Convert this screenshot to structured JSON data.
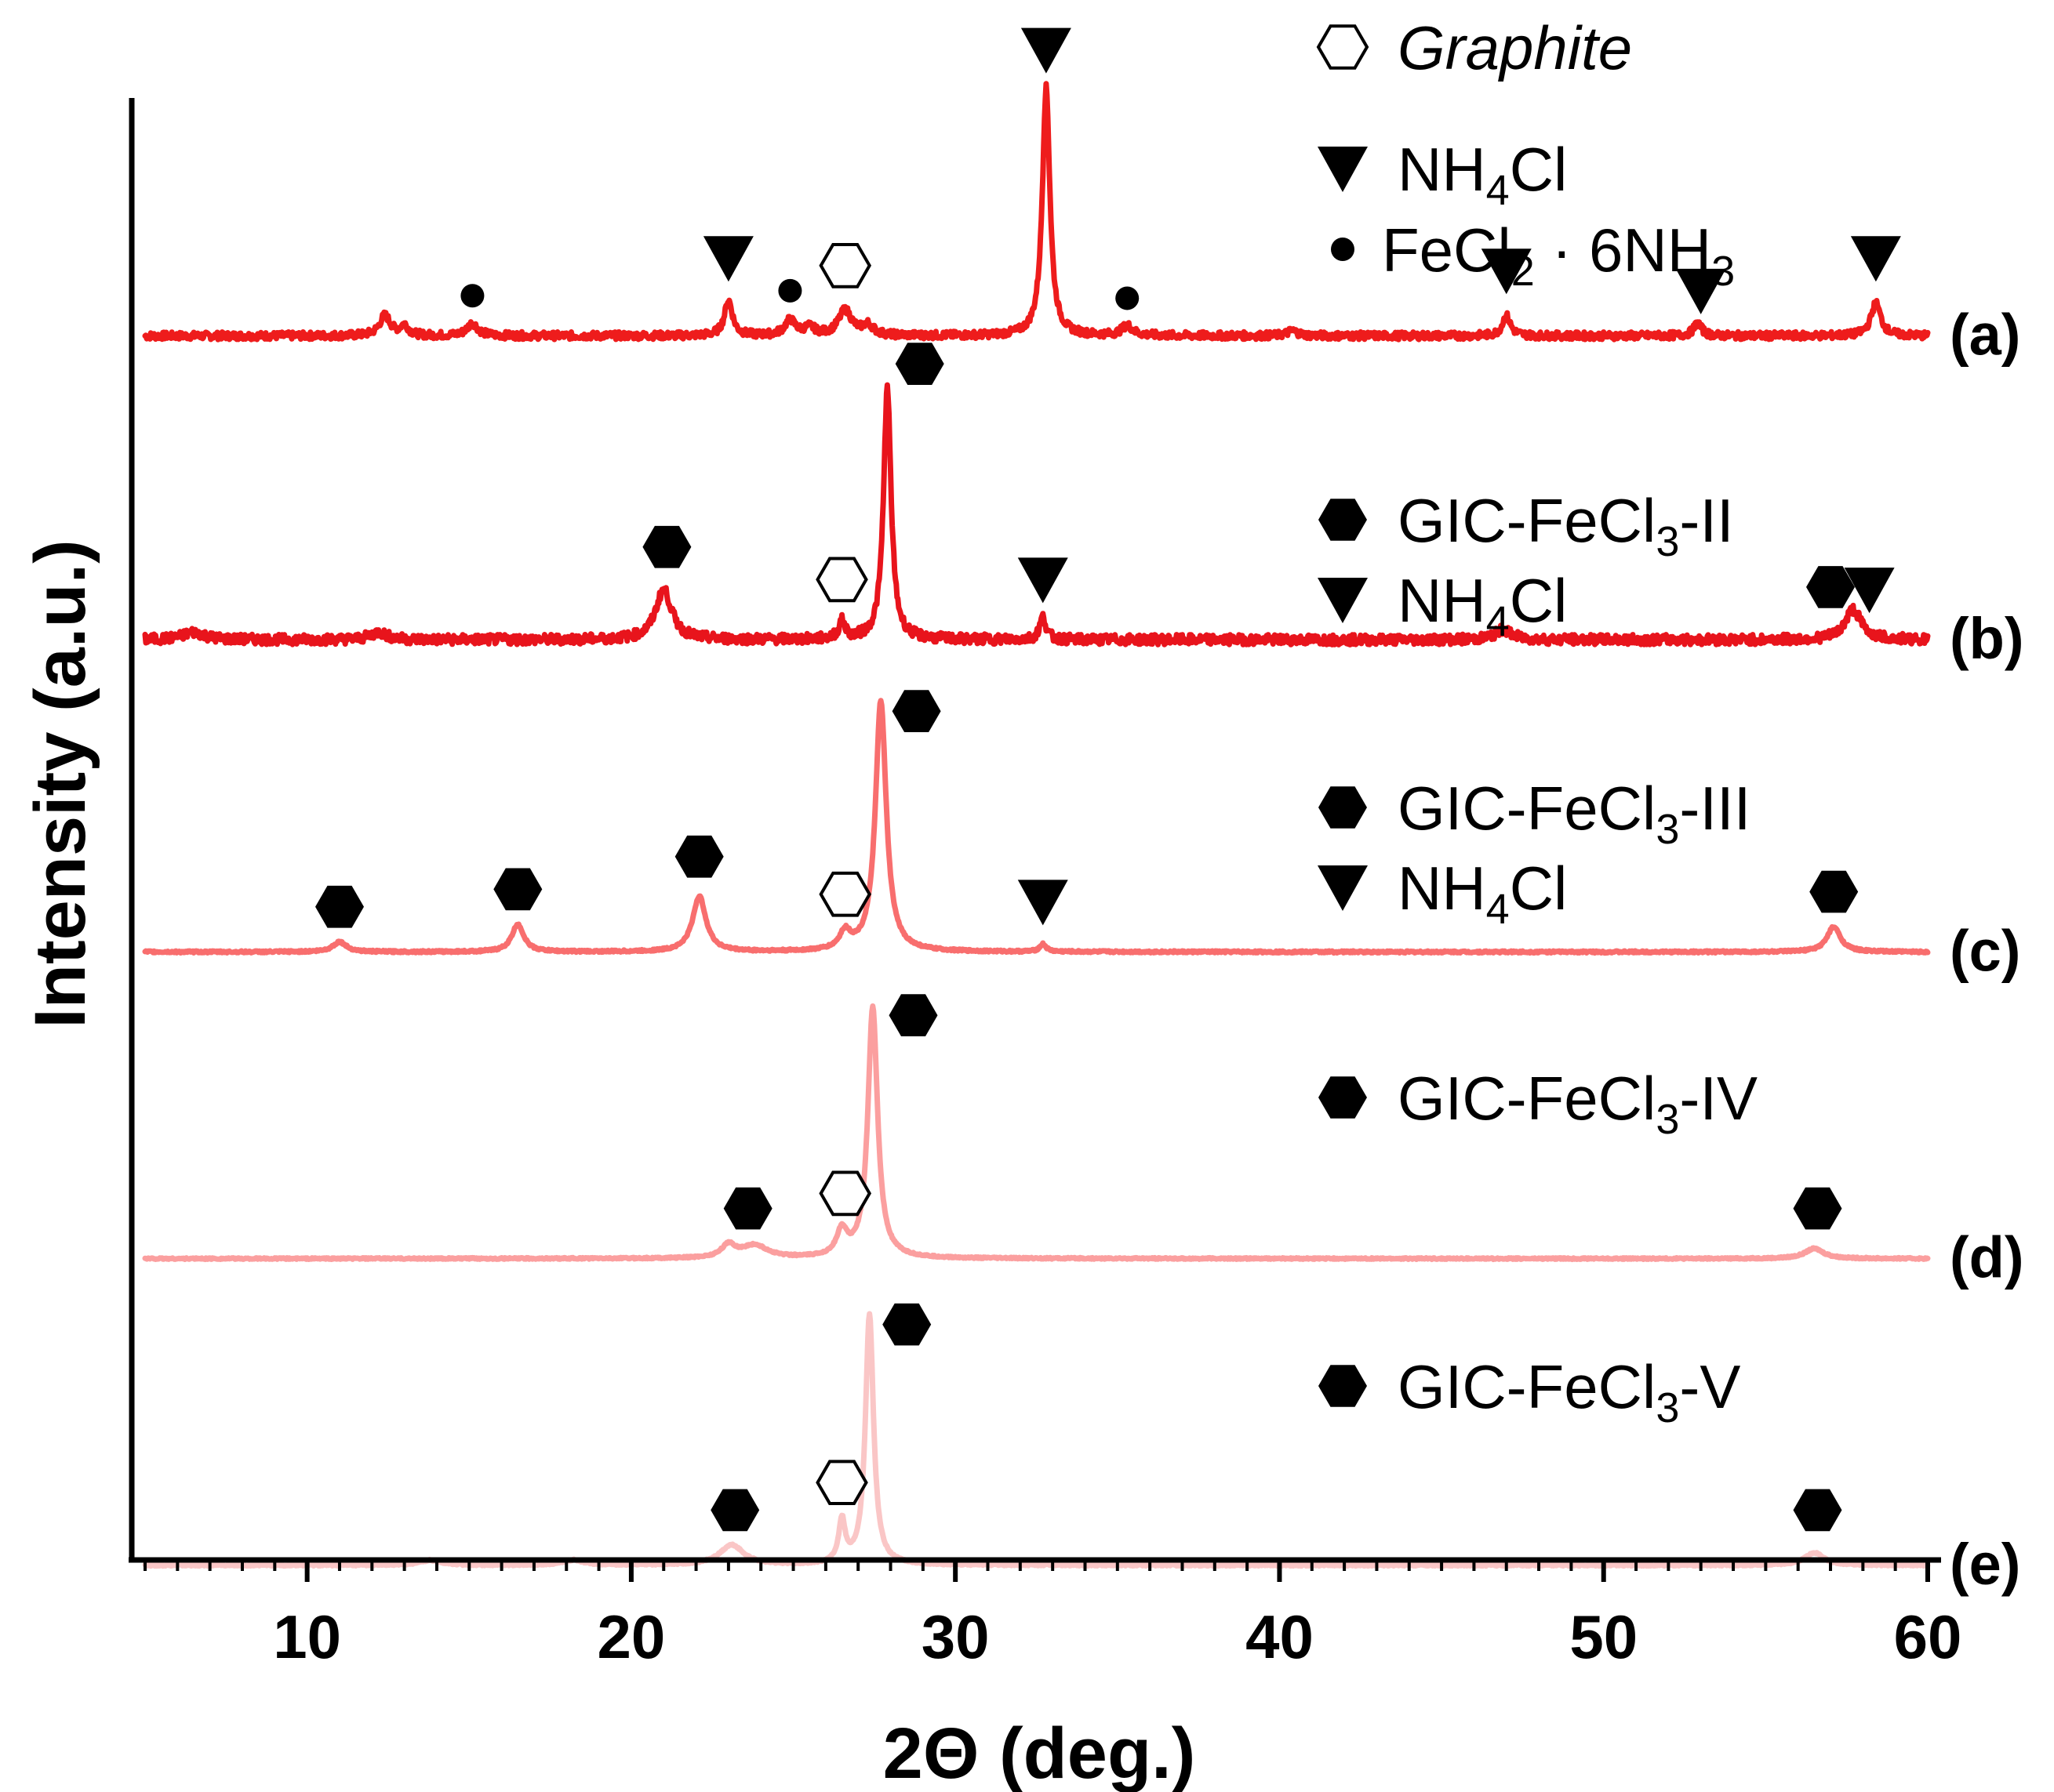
{
  "chart_data": {
    "type": "line",
    "title": "",
    "xlabel": "2Θ (deg.)",
    "ylabel": "Intensity (a.u.)",
    "xlim": [
      5,
      60
    ],
    "xticks": [
      10,
      20,
      30,
      40,
      50,
      60
    ],
    "grid": false,
    "series": [
      {
        "name": "(a)",
        "color": "#ee1c1c",
        "baseline": 1.0,
        "noise": 0.03,
        "peaks": [
          {
            "x": 12.4,
            "h": 0.08,
            "w": 0.2
          },
          {
            "x": 13.0,
            "h": 0.04,
            "w": 0.15
          },
          {
            "x": 15.1,
            "h": 0.05,
            "w": 0.2
          },
          {
            "x": 23.0,
            "h": 0.14,
            "w": 0.15
          },
          {
            "x": 24.9,
            "h": 0.06,
            "w": 0.2
          },
          {
            "x": 25.5,
            "h": 0.03,
            "w": 0.2
          },
          {
            "x": 26.6,
            "h": 0.1,
            "w": 0.25
          },
          {
            "x": 27.3,
            "h": 0.04,
            "w": 0.2
          },
          {
            "x": 32.8,
            "h": 0.99,
            "w": 0.14
          },
          {
            "x": 35.3,
            "h": 0.04,
            "w": 0.2
          },
          {
            "x": 40.4,
            "h": 0.02,
            "w": 0.2
          },
          {
            "x": 47.0,
            "h": 0.08,
            "w": 0.15
          },
          {
            "x": 52.9,
            "h": 0.05,
            "w": 0.15
          },
          {
            "x": 58.4,
            "h": 0.13,
            "w": 0.18
          }
        ]
      },
      {
        "name": "(b)",
        "color": "#e8141c",
        "baseline": 2.1,
        "noise": 0.04,
        "peaks": [
          {
            "x": 6.5,
            "h": 0.03,
            "w": 0.4
          },
          {
            "x": 12.2,
            "h": 0.03,
            "w": 0.3
          },
          {
            "x": 21.0,
            "h": 0.2,
            "w": 0.3
          },
          {
            "x": 26.5,
            "h": 0.07,
            "w": 0.12
          },
          {
            "x": 27.9,
            "h": 1.0,
            "w": 0.14
          },
          {
            "x": 32.7,
            "h": 0.09,
            "w": 0.12
          },
          {
            "x": 46.9,
            "h": 0.04,
            "w": 0.3
          },
          {
            "x": 57.7,
            "h": 0.12,
            "w": 0.3
          }
        ]
      },
      {
        "name": "(c)",
        "color": "#f86e6e",
        "baseline": 3.23,
        "noise": 0.008,
        "peaks": [
          {
            "x": 11.0,
            "h": 0.04,
            "w": 0.25
          },
          {
            "x": 16.5,
            "h": 0.11,
            "w": 0.22
          },
          {
            "x": 22.1,
            "h": 0.22,
            "w": 0.25
          },
          {
            "x": 26.6,
            "h": 0.07,
            "w": 0.2
          },
          {
            "x": 27.7,
            "h": 1.0,
            "w": 0.2
          },
          {
            "x": 32.7,
            "h": 0.03,
            "w": 0.12
          },
          {
            "x": 57.1,
            "h": 0.1,
            "w": 0.25
          }
        ]
      },
      {
        "name": "(d)",
        "color": "#fb9f9f",
        "baseline": 4.34,
        "noise": 0.006,
        "peaks": [
          {
            "x": 23.0,
            "h": 0.05,
            "w": 0.25
          },
          {
            "x": 23.8,
            "h": 0.05,
            "w": 0.5
          },
          {
            "x": 26.5,
            "h": 0.1,
            "w": 0.2
          },
          {
            "x": 27.45,
            "h": 1.0,
            "w": 0.18
          },
          {
            "x": 56.5,
            "h": 0.04,
            "w": 0.35
          }
        ]
      },
      {
        "name": "(e)",
        "color": "#fac6c6",
        "baseline": 5.45,
        "noise": 0.006,
        "peaks": [
          {
            "x": 13.8,
            "h": 0.02,
            "w": 0.4
          },
          {
            "x": 18.2,
            "h": 0.02,
            "w": 0.4
          },
          {
            "x": 23.1,
            "h": 0.08,
            "w": 0.45
          },
          {
            "x": 26.5,
            "h": 0.17,
            "w": 0.12
          },
          {
            "x": 27.35,
            "h": 1.0,
            "w": 0.15
          },
          {
            "x": 56.5,
            "h": 0.05,
            "w": 0.35
          }
        ]
      }
    ],
    "markers": [
      {
        "series": 0,
        "x": 15.1,
        "h": 0.16,
        "type": "dot"
      },
      {
        "series": 0,
        "x": 23.0,
        "h": 0.31,
        "type": "triangle"
      },
      {
        "series": 0,
        "x": 24.9,
        "h": 0.18,
        "type": "dot"
      },
      {
        "series": 0,
        "x": 26.6,
        "h": 0.28,
        "type": "hex-open"
      },
      {
        "series": 0,
        "x": 32.8,
        "h": 1.14,
        "type": "triangle"
      },
      {
        "series": 0,
        "x": 35.3,
        "h": 0.15,
        "type": "dot"
      },
      {
        "series": 0,
        "x": 47.0,
        "h": 0.26,
        "type": "triangle"
      },
      {
        "series": 0,
        "x": 53.0,
        "h": 0.18,
        "type": "triangle"
      },
      {
        "series": 0,
        "x": 58.4,
        "h": 0.31,
        "type": "triangle"
      },
      {
        "series": 1,
        "x": 21.1,
        "h": 0.37,
        "type": "hex"
      },
      {
        "series": 1,
        "x": 26.5,
        "h": 0.24,
        "type": "hex-open"
      },
      {
        "series": 1,
        "x": 28.9,
        "h": 1.1,
        "type": "hex"
      },
      {
        "series": 1,
        "x": 32.7,
        "h": 0.24,
        "type": "triangle"
      },
      {
        "series": 1,
        "x": 57.0,
        "h": 0.21,
        "type": "hex"
      },
      {
        "series": 1,
        "x": 58.2,
        "h": 0.2,
        "type": "triangle"
      },
      {
        "series": 2,
        "x": 11.0,
        "h": 0.18,
        "type": "hex"
      },
      {
        "series": 2,
        "x": 16.5,
        "h": 0.25,
        "type": "hex"
      },
      {
        "series": 2,
        "x": 22.1,
        "h": 0.38,
        "type": "hex"
      },
      {
        "series": 2,
        "x": 26.6,
        "h": 0.23,
        "type": "hex-open"
      },
      {
        "series": 2,
        "x": 28.8,
        "h": 0.96,
        "type": "hex"
      },
      {
        "series": 2,
        "x": 32.7,
        "h": 0.2,
        "type": "triangle"
      },
      {
        "series": 2,
        "x": 57.1,
        "h": 0.24,
        "type": "hex"
      },
      {
        "series": 3,
        "x": 23.6,
        "h": 0.2,
        "type": "hex"
      },
      {
        "series": 3,
        "x": 26.6,
        "h": 0.26,
        "type": "hex-open"
      },
      {
        "series": 3,
        "x": 28.7,
        "h": 0.97,
        "type": "hex"
      },
      {
        "series": 3,
        "x": 56.6,
        "h": 0.2,
        "type": "hex"
      },
      {
        "series": 4,
        "x": 23.2,
        "h": 0.22,
        "type": "hex"
      },
      {
        "series": 4,
        "x": 26.5,
        "h": 0.33,
        "type": "hex-open"
      },
      {
        "series": 4,
        "x": 28.5,
        "h": 0.96,
        "type": "hex"
      },
      {
        "series": 4,
        "x": 56.6,
        "h": 0.22,
        "type": "hex"
      }
    ],
    "legends": [
      {
        "items": [
          {
            "marker": "hex-open",
            "text": "Graphite",
            "italic": true
          },
          {
            "marker": "triangle",
            "text": "NH",
            "sub": "4",
            "rest": "Cl"
          },
          {
            "marker": "dot",
            "text": "FeCl",
            "sub": "2",
            "rest": " · 6NH",
            "sub2": "3"
          }
        ]
      },
      {
        "items": [
          {
            "marker": "hex",
            "text": "GIC-FeCl",
            "sub": "3",
            "rest": "-II"
          },
          {
            "marker": "triangle",
            "text": "NH",
            "sub": "4",
            "rest": "Cl"
          }
        ]
      },
      {
        "items": [
          {
            "marker": "hex",
            "text": "GIC-FeCl",
            "sub": "3",
            "rest": "-III"
          },
          {
            "marker": "triangle",
            "text": "NH",
            "sub": "4",
            "rest": "Cl"
          }
        ]
      },
      {
        "items": [
          {
            "marker": "hex",
            "text": "GIC-FeCl",
            "sub": "3",
            "rest": "-IV"
          }
        ]
      },
      {
        "items": [
          {
            "marker": "hex",
            "text": "GIC-FeCl",
            "sub": "3",
            "rest": "-V"
          }
        ]
      }
    ]
  }
}
